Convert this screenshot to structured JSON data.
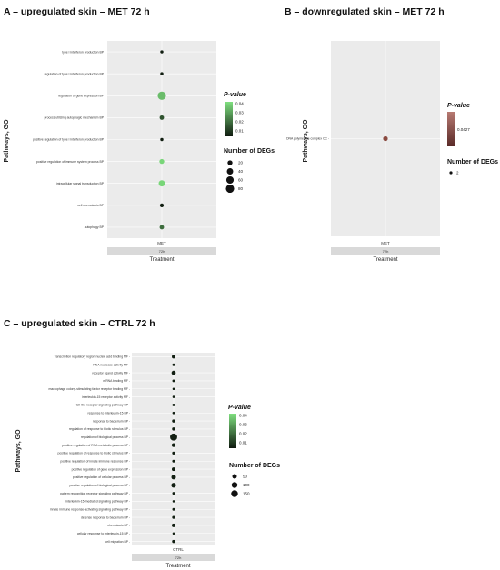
{
  "colors": {
    "panel_bg": "#ebebeb",
    "grid": "#ffffff",
    "strip_bg": "#d9d9d9",
    "gradient_low": "#0f1a0f",
    "gradient_high": "#7fe07f",
    "panel_b_high": "#b77a72",
    "panel_b_low": "#5a2a28"
  },
  "chart_data": [
    {
      "type": "scatter",
      "title": "A – upregulated skin – MET 72 h",
      "ylabel": "Pathways, GO",
      "xlabel": "Treatment",
      "strip": "72h",
      "categories_x": [
        "MET"
      ],
      "categories_y": [
        "type I interferon production BP",
        "regulation of type I interferon production BP",
        "regulation of gene expression BP",
        "process utilizing autophagic mechanism BP",
        "positive regulation of type I interferon production BP",
        "positive regulation of immune system process BP",
        "intracellular signal transduction BP",
        "cell chemotaxis BP",
        "autophagy BP"
      ],
      "points": [
        {
          "x": "MET",
          "y": "type I interferon production BP",
          "degs": 5,
          "pvalue": 0.005
        },
        {
          "x": "MET",
          "y": "regulation of type I interferon production BP",
          "degs": 5,
          "pvalue": 0.005
        },
        {
          "x": "MET",
          "y": "regulation of gene expression BP",
          "degs": 80,
          "pvalue": 0.035
        },
        {
          "x": "MET",
          "y": "process utilizing autophagic mechanism BP",
          "degs": 15,
          "pvalue": 0.015
        },
        {
          "x": "MET",
          "y": "positive regulation of type I interferon production BP",
          "degs": 5,
          "pvalue": 0.005
        },
        {
          "x": "MET",
          "y": "positive regulation of immune system process BP",
          "degs": 20,
          "pvalue": 0.04
        },
        {
          "x": "MET",
          "y": "intracellular signal transduction BP",
          "degs": 40,
          "pvalue": 0.04
        },
        {
          "x": "MET",
          "y": "cell chemotaxis BP",
          "degs": 10,
          "pvalue": 0.005
        },
        {
          "x": "MET",
          "y": "autophagy BP",
          "degs": 15,
          "pvalue": 0.02
        }
      ],
      "legend_pvalue": {
        "title": "P-value",
        "ticks": [
          0.04,
          0.03,
          0.02,
          0.01
        ],
        "range": [
          0.004,
          0.042
        ]
      },
      "legend_size": {
        "title": "Number of DEGs",
        "ticks": [
          20,
          40,
          60,
          80
        ]
      }
    },
    {
      "type": "scatter",
      "title": "B – downregulated skin – MET 72 h",
      "ylabel": "Pathways, GO",
      "xlabel": "Treatment",
      "strip": "72h",
      "categories_x": [
        "MET"
      ],
      "categories_y": [
        "DNA polymerase complex CC"
      ],
      "points": [
        {
          "x": "MET",
          "y": "DNA polymerase complex CC",
          "degs": 2,
          "pvalue": 0.0427
        }
      ],
      "legend_pvalue": {
        "title": "P-value",
        "ticks": [
          0.0427
        ]
      },
      "legend_size": {
        "title": "Number of DEGs",
        "ticks": [
          2
        ]
      }
    },
    {
      "type": "scatter",
      "title": "C – upregulated skin – CTRL 72 h",
      "ylabel": "Pathways, GO",
      "xlabel": "Treatment",
      "strip": "72h",
      "categories_x": [
        "CTRL"
      ],
      "categories_y": [
        "transcription regulatory region nucleic acid binding MF",
        "RNA nuclease activity MF",
        "receptor ligand activity MF",
        "mRNA binding MF",
        "macrophage colony-stimulating factor receptor binding MF",
        "interleukin-15 receptor activity MF",
        "toll-like receptor signaling pathway BP",
        "response to interleukin-15 BP",
        "response to bacterium BP",
        "regulation of response to biotic stimulus BP",
        "regulation of biological process BP",
        "positive regulation of RNA metabolic process BP",
        "positive regulation of response to biotic stimulus BP",
        "positive regulation of innate immune response BP",
        "positive regulation of gene expression BP",
        "positive regulation of cellular process BP",
        "positive regulation of biological process BP",
        "pattern recognition receptor signaling pathway BP",
        "interleukin-15-mediated signaling pathway BP",
        "innate immune response-activating signaling pathway BP",
        "defense response to bacterium BP",
        "chemotaxis BP",
        "cellular response to interleukin-15 BP",
        "cell migration BP"
      ],
      "points": [
        {
          "x": "CTRL",
          "y": "transcription regulatory region nucleic acid binding MF",
          "degs": 25,
          "pvalue": 0.005
        },
        {
          "x": "CTRL",
          "y": "RNA nuclease activity MF",
          "degs": 8,
          "pvalue": 0.005
        },
        {
          "x": "CTRL",
          "y": "receptor ligand activity MF",
          "degs": 40,
          "pvalue": 0.005
        },
        {
          "x": "CTRL",
          "y": "mRNA binding MF",
          "degs": 8,
          "pvalue": 0.005
        },
        {
          "x": "CTRL",
          "y": "macrophage colony-stimulating factor receptor binding MF",
          "degs": 4,
          "pvalue": 0.005
        },
        {
          "x": "CTRL",
          "y": "interleukin-15 receptor activity MF",
          "degs": 4,
          "pvalue": 0.005
        },
        {
          "x": "CTRL",
          "y": "toll-like receptor signaling pathway BP",
          "degs": 8,
          "pvalue": 0.005
        },
        {
          "x": "CTRL",
          "y": "response to interleukin-15 BP",
          "degs": 6,
          "pvalue": 0.005
        },
        {
          "x": "CTRL",
          "y": "response to bacterium BP",
          "degs": 15,
          "pvalue": 0.005
        },
        {
          "x": "CTRL",
          "y": "regulation of response to biotic stimulus BP",
          "degs": 15,
          "pvalue": 0.005
        },
        {
          "x": "CTRL",
          "y": "regulation of biological process BP",
          "degs": 170,
          "pvalue": 0.005
        },
        {
          "x": "CTRL",
          "y": "positive regulation of RNA metabolic process BP",
          "degs": 30,
          "pvalue": 0.005
        },
        {
          "x": "CTRL",
          "y": "positive regulation of response to biotic stimulus BP",
          "degs": 12,
          "pvalue": 0.005
        },
        {
          "x": "CTRL",
          "y": "positive regulation of innate immune response BP",
          "degs": 10,
          "pvalue": 0.005
        },
        {
          "x": "CTRL",
          "y": "positive regulation of gene expression BP",
          "degs": 25,
          "pvalue": 0.005
        },
        {
          "x": "CTRL",
          "y": "positive regulation of cellular process BP",
          "degs": 50,
          "pvalue": 0.005
        },
        {
          "x": "CTRL",
          "y": "positive regulation of biological process BP",
          "degs": 55,
          "pvalue": 0.005
        },
        {
          "x": "CTRL",
          "y": "pattern recognition receptor signaling pathway BP",
          "degs": 8,
          "pvalue": 0.005
        },
        {
          "x": "CTRL",
          "y": "interleukin-15-mediated signaling pathway BP",
          "degs": 4,
          "pvalue": 0.005
        },
        {
          "x": "CTRL",
          "y": "innate immune response-activating signaling pathway BP",
          "degs": 8,
          "pvalue": 0.005
        },
        {
          "x": "CTRL",
          "y": "defense response to bacterium BP",
          "degs": 12,
          "pvalue": 0.005
        },
        {
          "x": "CTRL",
          "y": "chemotaxis BP",
          "degs": 25,
          "pvalue": 0.005
        },
        {
          "x": "CTRL",
          "y": "cellular response to interleukin-15 BP",
          "degs": 4,
          "pvalue": 0.005
        },
        {
          "x": "CTRL",
          "y": "cell migration BP",
          "degs": 15,
          "pvalue": 0.005
        }
      ],
      "legend_pvalue": {
        "title": "P-value",
        "ticks": [
          0.04,
          0.03,
          0.02,
          0.01
        ],
        "range": [
          0.004,
          0.042
        ]
      },
      "legend_size": {
        "title": "Number of DEGs",
        "ticks": [
          50,
          100,
          150
        ]
      }
    }
  ]
}
